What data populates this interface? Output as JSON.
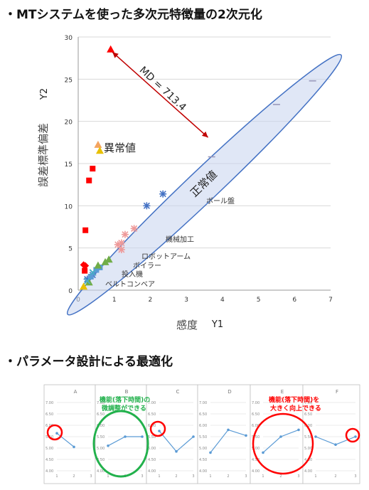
{
  "headings": {
    "section1": "・MTシステムを使った多次元特徴量の2次元化",
    "section2": "・パラメータ設計による最適化"
  },
  "chart_data": [
    {
      "type": "scatter",
      "xlabel": "感度　Y1",
      "ylabel": "誤差標準偏差　Y2",
      "xlim": [
        0,
        7
      ],
      "ylim": [
        0,
        30
      ],
      "xticks": [
        "0",
        "1",
        "2",
        "3",
        "4",
        "5",
        "6",
        "7"
      ],
      "yticks": [
        "0",
        "5",
        "10",
        "15",
        "20",
        "25",
        "30"
      ],
      "grid": "horizontal",
      "series": [
        {
          "color": "#ff0000",
          "marker": "square",
          "points": [
            [
              0.2,
              7.1
            ],
            [
              0.3,
              13
            ],
            [
              0.4,
              14.4
            ],
            [
              0.18,
              2.3
            ]
          ]
        },
        {
          "color": "#ff0000",
          "marker": "diamond",
          "points": [
            [
              0.15,
              3.0
            ],
            [
              0.2,
              2.9
            ]
          ]
        },
        {
          "color": "#ff0000",
          "marker": "triangle",
          "points": [
            [
              0.9,
              28.5
            ]
          ]
        },
        {
          "color": "#f4a460",
          "marker": "triangle",
          "points": [
            [
              0.55,
              17.2
            ]
          ]
        },
        {
          "color": "#e8c000",
          "marker": "triangle",
          "points": [
            [
              0.6,
              16.5
            ],
            [
              0.15,
              0.4
            ]
          ]
        },
        {
          "color": "#4472c4",
          "marker": "star",
          "points": [
            [
              1.9,
              10.0
            ],
            [
              2.35,
              11.4
            ],
            [
              0.25,
              1.3
            ],
            [
              0.4,
              1.8
            ]
          ]
        },
        {
          "color": "#ee9999",
          "marker": "star",
          "points": [
            [
              1.2,
              5.6
            ],
            [
              1.3,
              6.6
            ],
            [
              1.55,
              7.3
            ],
            [
              1.2,
              4.8
            ],
            [
              1.1,
              5.4
            ]
          ]
        },
        {
          "color": "#9999bb",
          "marker": "dash",
          "points": [
            [
              6.5,
              24.8
            ],
            [
              5.5,
              22.0
            ],
            [
              3.7,
              15.8
            ]
          ]
        },
        {
          "color": "#5b9bd5",
          "marker": "square",
          "points": [
            [
              0.5,
              2.4
            ],
            [
              0.35,
              1.6
            ],
            [
              0.6,
              2.7
            ]
          ]
        },
        {
          "color": "#70ad47",
          "marker": "triangle",
          "points": [
            [
              0.75,
              3.3
            ],
            [
              0.55,
              2.9
            ],
            [
              0.85,
              3.6
            ],
            [
              0.3,
              0.9
            ]
          ]
        },
        {
          "color": "#4bacc6",
          "marker": "cross",
          "points": [
            [
              0.4,
              2.1
            ],
            [
              0.25,
              1.1
            ]
          ]
        }
      ],
      "annotations": {
        "md_label": "MD = 713.4",
        "md_from": [
          0.95,
          28.2
        ],
        "md_to": [
          3.6,
          18.1
        ],
        "abnormal": "異常値",
        "normal": "正常値",
        "ball_board": "ボール盤",
        "machine": "機械加工",
        "robot": "ロボットアーム",
        "boiler": "ボイラー",
        "injector": "投入機",
        "conveyor": "ベルトコンベア"
      }
    },
    {
      "type": "line",
      "panels": [
        {
          "title": "A",
          "values": [
            5.65,
            5.05
          ]
        },
        {
          "title": "B",
          "values": [
            5.1,
            5.5,
            5.5
          ]
        },
        {
          "title": "C",
          "values": [
            5.75,
            4.85,
            5.5
          ]
        },
        {
          "title": "D",
          "values": [
            4.8,
            5.8,
            5.55
          ]
        },
        {
          "title": "E",
          "values": [
            4.8,
            5.5,
            5.8
          ]
        },
        {
          "title": "F",
          "values": [
            5.5,
            5.15,
            5.5
          ]
        }
      ],
      "x": [
        1,
        2,
        3
      ],
      "ylim": [
        4.0,
        7.0
      ],
      "yticks": [
        "4.00",
        "4.50",
        "5.00",
        "5.50",
        "6.00",
        "6.50",
        "7.00"
      ],
      "xticks": [
        "1",
        "2",
        "3"
      ],
      "annotation_green": "機能(落下時間)の\n微調整ができる",
      "annotation_red": "機能(落下時間)を\n大きく向上できる"
    }
  ]
}
